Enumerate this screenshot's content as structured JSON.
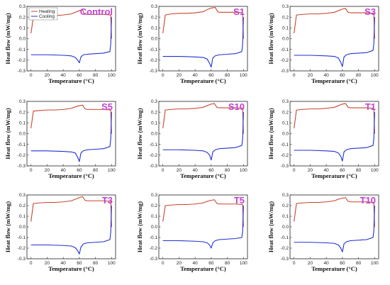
{
  "colors": {
    "heating": "#c8452e",
    "cooling": "#2030d0",
    "title": "#c23fd6"
  },
  "legend": {
    "heating": "Heating",
    "cooling": "Cooling"
  },
  "chart_data": [
    {
      "type": "line",
      "title": "Control",
      "xlabel": "Temperature (°C)",
      "ylabel": "Heat flow (mW/mg)",
      "xlim": [
        -5,
        105
      ],
      "ylim": [
        -0.3,
        0.3
      ],
      "xticks": [
        0,
        20,
        40,
        60,
        80,
        100
      ],
      "yticks": [
        -0.3,
        -0.2,
        -0.1,
        0.0,
        0.1,
        0.2,
        0.3
      ],
      "series": [
        {
          "name": "Heating",
          "x": [
            0,
            3,
            10,
            20,
            30,
            40,
            50,
            55,
            60,
            64,
            66,
            70,
            80,
            90,
            99,
            100
          ],
          "y": [
            0.05,
            0.2,
            0.21,
            0.215,
            0.215,
            0.22,
            0.23,
            0.245,
            0.26,
            0.27,
            0.23,
            0.225,
            0.225,
            0.225,
            0.22,
            0.0
          ]
        },
        {
          "name": "Cooling",
          "x": [
            100,
            99,
            98,
            90,
            80,
            70,
            65,
            62,
            60,
            58,
            55,
            50,
            40,
            20,
            0
          ],
          "y": [
            0.2,
            -0.05,
            -0.12,
            -0.135,
            -0.14,
            -0.145,
            -0.15,
            -0.17,
            -0.225,
            -0.2,
            -0.175,
            -0.16,
            -0.155,
            -0.15,
            -0.15
          ]
        }
      ]
    },
    {
      "type": "line",
      "title": "S1",
      "xlabel": "Temperature (°C)",
      "ylabel": "Heat flow (mW/mg)",
      "xlim": [
        -5,
        105
      ],
      "ylim": [
        -0.3,
        0.3
      ],
      "xticks": [
        0,
        20,
        40,
        60,
        80,
        100
      ],
      "yticks": [
        -0.3,
        -0.2,
        -0.1,
        0.0,
        0.1,
        0.2,
        0.3
      ],
      "series": [
        {
          "name": "Heating",
          "x": [
            0,
            3,
            10,
            20,
            30,
            40,
            50,
            55,
            60,
            65,
            68,
            70,
            80,
            90,
            99,
            100
          ],
          "y": [
            0.05,
            0.22,
            0.23,
            0.235,
            0.235,
            0.24,
            0.25,
            0.27,
            0.285,
            0.29,
            0.25,
            0.245,
            0.245,
            0.245,
            0.24,
            0.0
          ]
        },
        {
          "name": "Cooling",
          "x": [
            100,
            99,
            98,
            90,
            80,
            70,
            65,
            62,
            60,
            58,
            55,
            50,
            40,
            20,
            0
          ],
          "y": [
            0.2,
            -0.05,
            -0.12,
            -0.14,
            -0.145,
            -0.15,
            -0.16,
            -0.18,
            -0.265,
            -0.23,
            -0.19,
            -0.175,
            -0.17,
            -0.165,
            -0.165
          ]
        }
      ]
    },
    {
      "type": "line",
      "title": "S3",
      "xlabel": "Temperature (°C)",
      "ylabel": "Heat flow (mW/mg)",
      "xlim": [
        -5,
        105
      ],
      "ylim": [
        -0.3,
        0.3
      ],
      "xticks": [
        0,
        20,
        40,
        60,
        80,
        100
      ],
      "yticks": [
        -0.3,
        -0.2,
        -0.1,
        0.0,
        0.1,
        0.2,
        0.3
      ],
      "series": [
        {
          "name": "Heating",
          "x": [
            0,
            3,
            10,
            20,
            30,
            40,
            50,
            55,
            60,
            64,
            67,
            70,
            80,
            90,
            99,
            100
          ],
          "y": [
            0.05,
            0.22,
            0.225,
            0.23,
            0.23,
            0.235,
            0.245,
            0.26,
            0.275,
            0.28,
            0.245,
            0.24,
            0.24,
            0.24,
            0.235,
            0.0
          ]
        },
        {
          "name": "Cooling",
          "x": [
            100,
            99,
            98,
            90,
            80,
            70,
            65,
            62,
            60,
            58,
            55,
            50,
            40,
            20,
            0
          ],
          "y": [
            0.2,
            -0.05,
            -0.11,
            -0.13,
            -0.135,
            -0.14,
            -0.15,
            -0.17,
            -0.26,
            -0.22,
            -0.18,
            -0.165,
            -0.16,
            -0.155,
            -0.155
          ]
        }
      ]
    },
    {
      "type": "line",
      "title": "S5",
      "xlabel": "Temperature (°C)",
      "ylabel": "Heat flow (mW/mg)",
      "xlim": [
        -5,
        105
      ],
      "ylim": [
        -0.3,
        0.3
      ],
      "xticks": [
        0,
        20,
        40,
        60,
        80,
        100
      ],
      "yticks": [
        -0.3,
        -0.2,
        -0.1,
        0.0,
        0.1,
        0.2,
        0.3
      ],
      "series": [
        {
          "name": "Heating",
          "x": [
            0,
            3,
            10,
            20,
            30,
            40,
            50,
            55,
            60,
            64,
            67,
            70,
            80,
            90,
            99,
            100
          ],
          "y": [
            0.05,
            0.21,
            0.215,
            0.22,
            0.22,
            0.225,
            0.235,
            0.25,
            0.26,
            0.265,
            0.23,
            0.225,
            0.225,
            0.225,
            0.22,
            0.0
          ]
        },
        {
          "name": "Cooling",
          "x": [
            100,
            99,
            98,
            90,
            80,
            70,
            65,
            62,
            60,
            58,
            55,
            50,
            40,
            20,
            0
          ],
          "y": [
            0.2,
            -0.05,
            -0.12,
            -0.14,
            -0.145,
            -0.15,
            -0.16,
            -0.18,
            -0.26,
            -0.22,
            -0.18,
            -0.17,
            -0.165,
            -0.16,
            -0.16
          ]
        }
      ]
    },
    {
      "type": "line",
      "title": "S10",
      "xlabel": "Temperature (°C)",
      "ylabel": "Heat flow (mW/mg)",
      "xlim": [
        -5,
        105
      ],
      "ylim": [
        -0.3,
        0.3
      ],
      "xticks": [
        0,
        20,
        40,
        60,
        80,
        100
      ],
      "yticks": [
        -0.3,
        -0.2,
        -0.1,
        0.0,
        0.1,
        0.2,
        0.3
      ],
      "series": [
        {
          "name": "Heating",
          "x": [
            0,
            3,
            10,
            20,
            30,
            40,
            50,
            55,
            60,
            64,
            67,
            70,
            80,
            90,
            99,
            100
          ],
          "y": [
            0.05,
            0.22,
            0.225,
            0.23,
            0.23,
            0.235,
            0.245,
            0.26,
            0.275,
            0.28,
            0.245,
            0.24,
            0.24,
            0.24,
            0.235,
            0.0
          ]
        },
        {
          "name": "Cooling",
          "x": [
            100,
            99,
            98,
            90,
            80,
            70,
            65,
            62,
            60,
            58,
            55,
            50,
            40,
            20,
            0
          ],
          "y": [
            0.2,
            -0.05,
            -0.11,
            -0.13,
            -0.135,
            -0.14,
            -0.15,
            -0.17,
            -0.245,
            -0.2,
            -0.175,
            -0.16,
            -0.155,
            -0.15,
            -0.15
          ]
        }
      ]
    },
    {
      "type": "line",
      "title": "T1",
      "xlabel": "Temperature (°C)",
      "ylabel": "Heat flow (mW/mg)",
      "xlim": [
        -5,
        105
      ],
      "ylim": [
        -0.3,
        0.3
      ],
      "xticks": [
        0,
        20,
        40,
        60,
        80,
        100
      ],
      "yticks": [
        -0.3,
        -0.2,
        -0.1,
        0.0,
        0.1,
        0.2,
        0.3
      ],
      "series": [
        {
          "name": "Heating",
          "x": [
            0,
            3,
            10,
            20,
            30,
            40,
            50,
            55,
            60,
            64,
            67,
            70,
            80,
            90,
            99,
            100
          ],
          "y": [
            0.05,
            0.22,
            0.225,
            0.23,
            0.23,
            0.235,
            0.245,
            0.26,
            0.275,
            0.28,
            0.245,
            0.24,
            0.24,
            0.24,
            0.235,
            0.0
          ]
        },
        {
          "name": "Cooling",
          "x": [
            100,
            99,
            98,
            90,
            80,
            70,
            65,
            62,
            60,
            58,
            55,
            50,
            40,
            20,
            0
          ],
          "y": [
            0.2,
            -0.05,
            -0.11,
            -0.13,
            -0.135,
            -0.14,
            -0.15,
            -0.17,
            -0.255,
            -0.21,
            -0.18,
            -0.165,
            -0.16,
            -0.155,
            -0.155
          ]
        }
      ]
    },
    {
      "type": "line",
      "title": "T3",
      "xlabel": "Temperature (°C)",
      "ylabel": "Heat flow (mW/mg)",
      "xlim": [
        -5,
        105
      ],
      "ylim": [
        -0.3,
        0.3
      ],
      "xticks": [
        0,
        20,
        40,
        60,
        80,
        100
      ],
      "yticks": [
        -0.3,
        -0.2,
        -0.1,
        0.0,
        0.1,
        0.2,
        0.3
      ],
      "series": [
        {
          "name": "Heating",
          "x": [
            0,
            3,
            10,
            20,
            30,
            40,
            50,
            55,
            60,
            64,
            67,
            70,
            80,
            90,
            99,
            100
          ],
          "y": [
            0.05,
            0.22,
            0.225,
            0.23,
            0.23,
            0.235,
            0.245,
            0.26,
            0.275,
            0.285,
            0.25,
            0.245,
            0.245,
            0.245,
            0.24,
            0.0
          ]
        },
        {
          "name": "Cooling",
          "x": [
            100,
            99,
            98,
            90,
            80,
            70,
            65,
            62,
            60,
            58,
            55,
            50,
            40,
            20,
            0
          ],
          "y": [
            0.2,
            -0.05,
            -0.12,
            -0.14,
            -0.145,
            -0.15,
            -0.16,
            -0.19,
            -0.255,
            -0.225,
            -0.195,
            -0.18,
            -0.175,
            -0.17,
            -0.17
          ]
        }
      ]
    },
    {
      "type": "line",
      "title": "T5",
      "xlabel": "Temperature (°C)",
      "ylabel": "Heat flow (mW/mg)",
      "xlim": [
        -5,
        105
      ],
      "ylim": [
        -0.3,
        0.3
      ],
      "xticks": [
        0,
        20,
        40,
        60,
        80,
        100
      ],
      "yticks": [
        -0.3,
        -0.2,
        -0.1,
        0.0,
        0.1,
        0.2,
        0.3
      ],
      "series": [
        {
          "name": "Heating",
          "x": [
            0,
            3,
            10,
            20,
            30,
            40,
            50,
            55,
            60,
            64,
            67,
            70,
            80,
            90,
            99,
            100
          ],
          "y": [
            0.05,
            0.2,
            0.205,
            0.21,
            0.21,
            0.215,
            0.225,
            0.24,
            0.25,
            0.255,
            0.22,
            0.215,
            0.215,
            0.215,
            0.21,
            0.0
          ]
        },
        {
          "name": "Cooling",
          "x": [
            100,
            99,
            98,
            90,
            80,
            70,
            65,
            62,
            60,
            58,
            55,
            50,
            40,
            20,
            0
          ],
          "y": [
            0.2,
            -0.04,
            -0.1,
            -0.11,
            -0.115,
            -0.12,
            -0.13,
            -0.15,
            -0.2,
            -0.17,
            -0.15,
            -0.14,
            -0.135,
            -0.13,
            -0.13
          ]
        }
      ]
    },
    {
      "type": "line",
      "title": "T10",
      "xlabel": "Temperature (°C)",
      "ylabel": "Heat flow (mW/mg)",
      "xlim": [
        -5,
        105
      ],
      "ylim": [
        -0.3,
        0.3
      ],
      "xticks": [
        0,
        20,
        40,
        60,
        80,
        100
      ],
      "yticks": [
        -0.3,
        -0.2,
        -0.1,
        0.0,
        0.1,
        0.2,
        0.3
      ],
      "series": [
        {
          "name": "Heating",
          "x": [
            0,
            3,
            10,
            20,
            30,
            40,
            50,
            55,
            60,
            64,
            67,
            70,
            80,
            90,
            99,
            100
          ],
          "y": [
            0.05,
            0.22,
            0.225,
            0.23,
            0.23,
            0.235,
            0.245,
            0.26,
            0.27,
            0.275,
            0.24,
            0.235,
            0.235,
            0.235,
            0.23,
            0.0
          ]
        },
        {
          "name": "Cooling",
          "x": [
            100,
            99,
            98,
            90,
            80,
            70,
            65,
            62,
            60,
            58,
            55,
            50,
            40,
            20,
            0
          ],
          "y": [
            0.2,
            -0.04,
            -0.1,
            -0.12,
            -0.125,
            -0.13,
            -0.14,
            -0.16,
            -0.235,
            -0.2,
            -0.17,
            -0.155,
            -0.15,
            -0.145,
            -0.145
          ]
        }
      ]
    }
  ]
}
